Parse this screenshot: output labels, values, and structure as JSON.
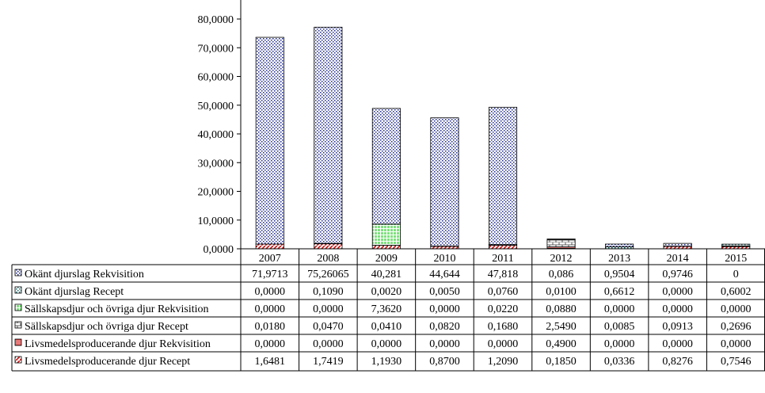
{
  "chart_data": {
    "type": "bar",
    "stacked": true,
    "title": "",
    "xlabel": "",
    "ylabel": "",
    "ylim": [
      0,
      80
    ],
    "ytick_labels": [
      "0,0000",
      "10,0000",
      "20,0000",
      "30,0000",
      "40,0000",
      "50,0000",
      "60,0000",
      "70,0000",
      "80,0000"
    ],
    "categories": [
      "2007",
      "2008",
      "2009",
      "2010",
      "2011",
      "2012",
      "2013",
      "2014",
      "2015"
    ],
    "legend_position": "data-table-left",
    "series": [
      {
        "name": "Okänt djurslag Rekvisition",
        "pattern": "dots-blue",
        "values": [
          71.9713,
          75.26065,
          40.281,
          44.644,
          47.818,
          0.086,
          0.9504,
          0.9746,
          0
        ],
        "labels": [
          "71,9713",
          "75,26065",
          "40,281",
          "44,644",
          "47,818",
          "0,086",
          "0,9504",
          "0,9746",
          "0"
        ]
      },
      {
        "name": "Okänt djurslag Recept",
        "pattern": "dots-teal",
        "values": [
          0.0,
          0.109,
          0.002,
          0.005,
          0.076,
          0.01,
          0.6612,
          0.0,
          0.6002
        ],
        "labels": [
          "0,0000",
          "0,1090",
          "0,0020",
          "0,0050",
          "0,0760",
          "0,0100",
          "0,6612",
          "0,0000",
          "0,6002"
        ]
      },
      {
        "name": "Sällskapsdjur och övriga djur Rekvisition",
        "pattern": "grid-green",
        "values": [
          0.0,
          0.0,
          7.362,
          0.0,
          0.022,
          0.088,
          0.0,
          0.0,
          0.0
        ],
        "labels": [
          "0,0000",
          "0,0000",
          "7,3620",
          "0,0000",
          "0,0220",
          "0,0880",
          "0,0000",
          "0,0000",
          "0,0000"
        ]
      },
      {
        "name": "Sällskapsdjur och övriga djur Recept",
        "pattern": "brick",
        "values": [
          0.018,
          0.047,
          0.041,
          0.082,
          0.168,
          2.549,
          0.0085,
          0.0913,
          0.2696
        ],
        "labels": [
          "0,0180",
          "0,0470",
          "0,0410",
          "0,0820",
          "0,1680",
          "2,5490",
          "0,0085",
          "0,0913",
          "0,2696"
        ]
      },
      {
        "name": "Livsmedelsproducerande djur Rekvisition",
        "pattern": "lines-red",
        "values": [
          0.0,
          0.0,
          0.0,
          0.0,
          0.0,
          0.49,
          0.0,
          0.0,
          0.0
        ],
        "labels": [
          "0,0000",
          "0,0000",
          "0,0000",
          "0,0000",
          "0,0000",
          "0,4900",
          "0,0000",
          "0,0000",
          "0,0000"
        ]
      },
      {
        "name": "Livsmedelsproducerande djur Recept",
        "pattern": "diag-red",
        "values": [
          1.6481,
          1.7419,
          1.193,
          0.87,
          1.209,
          0.185,
          0.0336,
          0.8276,
          0.7546
        ],
        "labels": [
          "1,6481",
          "1,7419",
          "1,1930",
          "0,8700",
          "1,2090",
          "0,1850",
          "0,0336",
          "0,8276",
          "0,7546"
        ]
      }
    ]
  }
}
